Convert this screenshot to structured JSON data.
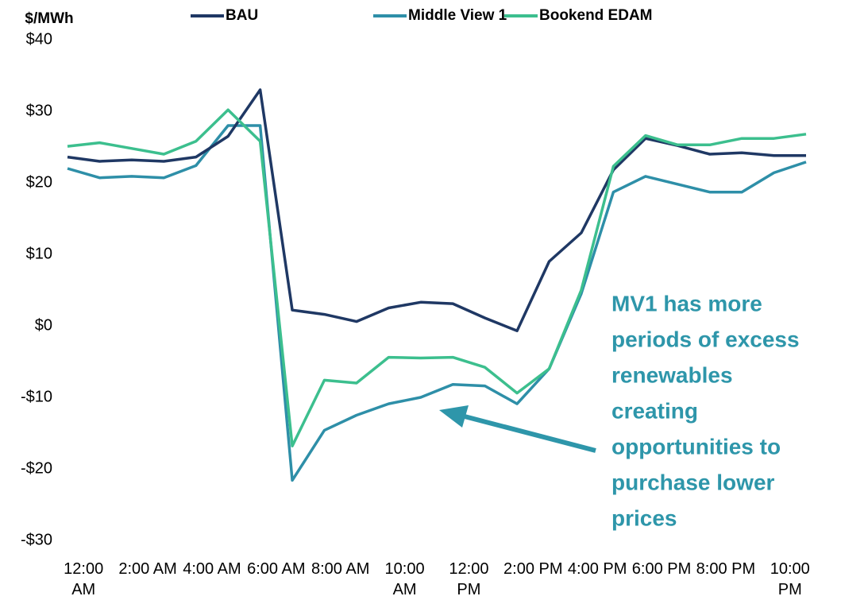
{
  "chart_data": {
    "type": "line",
    "y_axis_label": "$/MWh",
    "categories": [
      "12:00 AM",
      null,
      "2:00 AM",
      null,
      "4:00 AM",
      null,
      "6:00 AM",
      null,
      "8:00 AM",
      null,
      "10:00 AM",
      null,
      "12:00 PM",
      null,
      "2:00 PM",
      null,
      "4:00 PM",
      null,
      "6:00 PM",
      null,
      "8:00 PM",
      null,
      "10:00 PM",
      null
    ],
    "series": [
      {
        "name": "BAU",
        "color": "#1f3864",
        "values": [
          23.6,
          23.0,
          23.2,
          23.0,
          23.6,
          26.5,
          33.0,
          2.2,
          1.6,
          0.6,
          2.5,
          3.3,
          3.1,
          1.1,
          -0.7,
          9.0,
          13.0,
          21.8,
          26.2,
          25.2,
          24.0,
          24.2,
          23.8,
          23.8
        ]
      },
      {
        "name": "Middle View 1",
        "color": "#2e8fa8",
        "values": [
          22.0,
          20.7,
          20.9,
          20.7,
          22.4,
          28.0,
          28.0,
          -21.6,
          -14.6,
          -12.5,
          -10.9,
          -10.0,
          -8.2,
          -8.4,
          -10.9,
          -6.0,
          4.5,
          18.7,
          20.9,
          19.8,
          18.7,
          18.7,
          21.4,
          22.9
        ]
      },
      {
        "name": "Bookend EDAM",
        "color": "#3cbf8e",
        "values": [
          25.1,
          25.6,
          24.8,
          24.0,
          25.8,
          30.2,
          25.8,
          -16.8,
          -7.6,
          -8.0,
          -4.4,
          -4.5,
          -4.4,
          -5.8,
          -9.4,
          -6.0,
          5.0,
          22.3,
          26.6,
          25.3,
          25.3,
          26.2,
          26.2,
          26.8
        ]
      }
    ],
    "ylim": [
      -30,
      40
    ],
    "yticks": [
      {
        "value": -30,
        "label": "-$30"
      },
      {
        "value": -20,
        "label": "-$20"
      },
      {
        "value": -10,
        "label": "-$10"
      },
      {
        "value": 0,
        "label": "$0"
      },
      {
        "value": 10,
        "label": "$10"
      },
      {
        "value": 20,
        "label": "$20"
      },
      {
        "value": 30,
        "label": "$30"
      },
      {
        "value": 40,
        "label": "$40"
      }
    ],
    "grid": false,
    "legend_position": "top",
    "annotation": {
      "lines": [
        "MV1 has more",
        "periods of excess",
        "renewables",
        "creating",
        "opportunities to",
        "purchase lower",
        "prices"
      ],
      "color": "#2e96aa"
    }
  }
}
